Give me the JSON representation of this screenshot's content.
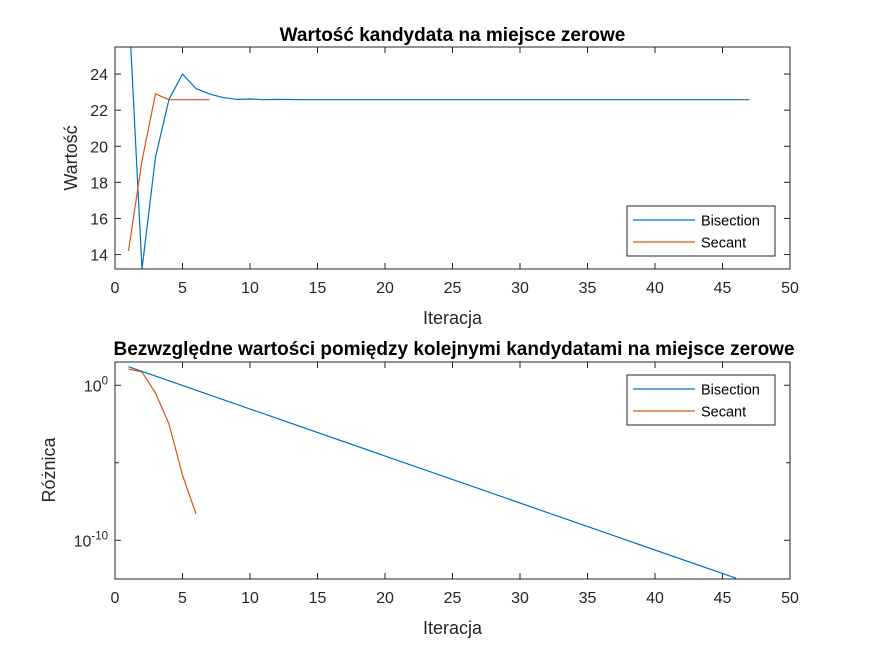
{
  "chart_data": [
    {
      "type": "line",
      "title": "Wartość kandydata na miejsce zerowe",
      "xlabel": "Iteracja",
      "ylabel": "Wartość",
      "xlim": [
        0,
        50
      ],
      "ylim": [
        13.2,
        25.5
      ],
      "yscale": "linear",
      "xticks": [
        "0",
        "5",
        "10",
        "15",
        "20",
        "25",
        "30",
        "35",
        "40",
        "45",
        "50"
      ],
      "yticks": [
        {
          "value": 14,
          "label": "14"
        },
        {
          "value": 16,
          "label": "16"
        },
        {
          "value": 18,
          "label": "18"
        },
        {
          "value": 20,
          "label": "20"
        },
        {
          "value": 22,
          "label": "22"
        },
        {
          "value": 24,
          "label": "24"
        }
      ],
      "grid": false,
      "legend_position": "bottom-right",
      "series": [
        {
          "name": "Bisection",
          "color": "#0072BD",
          "x": [
            1,
            2,
            3,
            4,
            5,
            6,
            7,
            8,
            9,
            10,
            11,
            12,
            13,
            14,
            15,
            16,
            17,
            18,
            19,
            20,
            21,
            22,
            23,
            24,
            25,
            26,
            27,
            28,
            29,
            30,
            31,
            32,
            33,
            34,
            35,
            36,
            37,
            38,
            39,
            40,
            41,
            42,
            43,
            44,
            45,
            46,
            47
          ],
          "y": [
            28,
            13.2,
            19.4,
            22.6,
            24,
            23.2,
            22.9,
            22.7,
            22.6,
            22.62,
            22.58,
            22.6,
            22.59,
            22.58,
            22.58,
            22.58,
            22.58,
            22.58,
            22.58,
            22.58,
            22.58,
            22.58,
            22.58,
            22.58,
            22.58,
            22.58,
            22.58,
            22.58,
            22.58,
            22.58,
            22.58,
            22.58,
            22.58,
            22.58,
            22.58,
            22.58,
            22.58,
            22.58,
            22.58,
            22.58,
            22.58,
            22.58,
            22.58,
            22.58,
            22.58,
            22.58,
            22.58
          ]
        },
        {
          "name": "Secant",
          "color": "#D95319",
          "x": [
            1,
            2,
            3,
            4,
            5,
            6,
            7
          ],
          "y": [
            14.2,
            19.2,
            22.9,
            22.58,
            22.58,
            22.58,
            22.58
          ]
        }
      ]
    },
    {
      "type": "line",
      "title": "Bezwzględne wartości pomiędzy kolejnymi kandydatami na miejsce zerowe",
      "xlabel": "Iteracja",
      "ylabel": "Różnica",
      "xlim": [
        0,
        50
      ],
      "ylim_log10": [
        -12.5,
        1.5
      ],
      "yscale": "log",
      "xticks": [
        "0",
        "5",
        "10",
        "15",
        "20",
        "25",
        "30",
        "35",
        "40",
        "45",
        "50"
      ],
      "yticks": [
        {
          "value": 0,
          "base": "10",
          "exp": "0"
        },
        {
          "value": -10,
          "base": "10",
          "exp": "-10"
        }
      ],
      "grid": false,
      "legend_position": "top-right",
      "series": [
        {
          "name": "Bisection",
          "color": "#0072BD",
          "x": [
            1,
            46
          ],
          "y_log10": [
            1.2,
            -12.45
          ]
        },
        {
          "name": "Secant",
          "color": "#D95319",
          "x": [
            1,
            2,
            3,
            4,
            5,
            6
          ],
          "y_log10": [
            1.05,
            0.85,
            -0.5,
            -2.5,
            -5.8,
            -8.3
          ]
        }
      ]
    }
  ]
}
